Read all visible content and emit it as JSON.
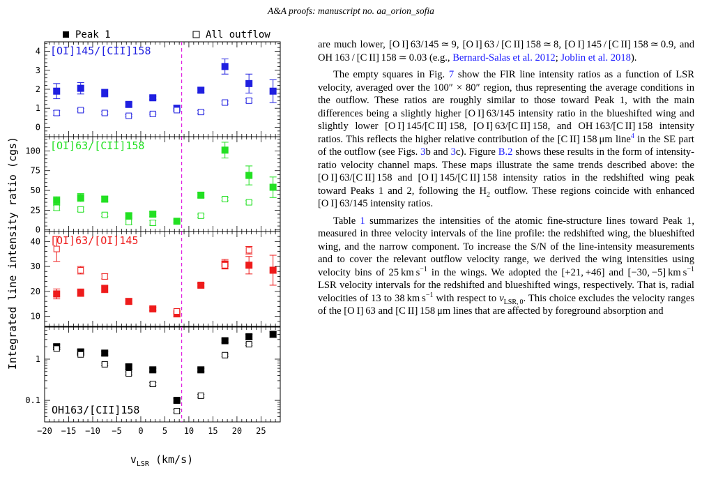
{
  "header": {
    "text": "A&A proofs: manuscript no. aa_orion_sofia"
  },
  "figure": {
    "legend": {
      "filled": "Peak 1",
      "open": "All outflow"
    },
    "ylabel": "Integrated line intensity ratio (cgs)",
    "xlabel": "v",
    "xlabel_sub": "LSR",
    "xlabel_unit": " (km/s)"
  },
  "chart_data": [
    {
      "type": "scatter",
      "title": "[OI]145/[CII]158",
      "color": "#1f1fe0",
      "scale": "linear",
      "ylim": [
        -0.5,
        4.5
      ],
      "yticks": [
        0,
        1,
        2,
        3,
        4
      ],
      "ytick_labels": [
        "0",
        "1",
        "2",
        "3",
        "4"
      ],
      "xlim": [
        -20,
        29
      ],
      "vline": 8.5,
      "series": [
        {
          "name": "Peak 1",
          "x": [
            -17.5,
            -12.5,
            -7.5,
            -2.5,
            2.5,
            7.5,
            12.5,
            17.5,
            22.5,
            27.5
          ],
          "y": [
            1.9,
            2.05,
            1.8,
            1.2,
            1.55,
            1.0,
            1.95,
            3.2,
            2.3,
            1.9
          ],
          "err": [
            0.4,
            0.3,
            0.2,
            0.12,
            0.08,
            0.15,
            0.12,
            0.4,
            0.5,
            0.6
          ]
        },
        {
          "name": "All outflow",
          "x": [
            -17.5,
            -12.5,
            -7.5,
            -2.5,
            2.5,
            7.5,
            12.5,
            17.5,
            22.5
          ],
          "y": [
            0.75,
            0.9,
            0.75,
            0.6,
            0.7,
            0.9,
            0.8,
            1.3,
            1.4
          ],
          "err": [
            0.12,
            0.08,
            0.08,
            0.06,
            0.05,
            0.08,
            0.08,
            0.08,
            0.1
          ]
        }
      ]
    },
    {
      "type": "scatter",
      "title": "[OI]63/[CII]158",
      "color": "#22e022",
      "scale": "linear",
      "ylim": [
        -2,
        118
      ],
      "yticks": [
        0,
        25,
        50,
        75,
        100
      ],
      "ytick_labels": [
        "0",
        "25",
        "50",
        "75",
        "100"
      ],
      "xlim": [
        -20,
        29
      ],
      "vline": 8.5,
      "series": [
        {
          "name": "Peak 1",
          "x": [
            -17.5,
            -12.5,
            -7.5,
            -2.5,
            2.5,
            7.5,
            12.5,
            17.5,
            22.5,
            27.5
          ],
          "y": [
            37,
            41,
            39,
            18,
            20,
            11,
            44,
            101,
            69,
            54
          ],
          "err": [
            5,
            5,
            3,
            3,
            3,
            2,
            3,
            10,
            12,
            13
          ]
        },
        {
          "name": "All outflow",
          "x": [
            -17.5,
            -12.5,
            -7.5,
            -2.5,
            2.5,
            12.5,
            17.5,
            22.5
          ],
          "y": [
            28,
            26,
            19,
            10,
            9,
            18,
            39,
            35
          ],
          "err": [
            3,
            3,
            2,
            3,
            3,
            2,
            2,
            2
          ]
        }
      ]
    },
    {
      "type": "scatter",
      "title": "[OI]63/[OI]145",
      "color": "#ee1b1b",
      "scale": "linear",
      "ylim": [
        6,
        44
      ],
      "yticks": [
        10,
        20,
        30,
        40
      ],
      "ytick_labels": [
        "10",
        "20",
        "30",
        "40"
      ],
      "xlim": [
        -20,
        29
      ],
      "vline": 8.5,
      "series": [
        {
          "name": "Peak 1",
          "x": [
            -17.5,
            -12.5,
            -7.5,
            -2.5,
            2.5,
            7.5,
            12.5,
            17.5,
            22.5,
            27.5
          ],
          "y": [
            19,
            19.5,
            21,
            16,
            13,
            11,
            22.5,
            31,
            30.5,
            28.5
          ],
          "err": [
            2,
            1.5,
            1.5,
            1,
            0.7,
            1.2,
            0.7,
            1.8,
            3.5,
            6
          ]
        },
        {
          "name": "All outflow",
          "x": [
            -17.5,
            -12.5,
            -7.5,
            7.5,
            17.5,
            22.5
          ],
          "y": [
            37,
            28.5,
            26,
            12,
            30.5,
            36.5
          ],
          "err": [
            5,
            1.5,
            1,
            1,
            1.5,
            1.5
          ]
        }
      ]
    },
    {
      "type": "scatter",
      "title": "OH163/[CII]158",
      "color": "#000000",
      "scale": "log",
      "ylim": [
        0.03,
        6
      ],
      "yticks": [
        0.1,
        1
      ],
      "ytick_labels": [
        "0.1",
        "1"
      ],
      "xlim": [
        -20,
        29
      ],
      "vline": 8.5,
      "series": [
        {
          "name": "Peak 1",
          "x": [
            -17.5,
            -12.5,
            -7.5,
            -2.5,
            2.5,
            7.5,
            12.5,
            17.5,
            22.5,
            27.5
          ],
          "y": [
            2.0,
            1.5,
            1.4,
            0.65,
            0.55,
            0.1,
            0.55,
            2.8,
            3.5,
            4.0
          ],
          "err": [
            0.3,
            0.2,
            0.15,
            0.08,
            0.05,
            0.01,
            0.05,
            0.3,
            0.5,
            0.6
          ]
        },
        {
          "name": "All outflow",
          "x": [
            -17.5,
            -12.5,
            -7.5,
            -2.5,
            2.5,
            7.5,
            12.5,
            17.5,
            22.5
          ],
          "y": [
            1.8,
            1.3,
            0.75,
            0.45,
            0.25,
            0.055,
            0.13,
            1.25,
            2.3
          ],
          "err": [
            0.1,
            0.08,
            0.05,
            0.04,
            0.02,
            0.005,
            0.01,
            0.08,
            0.15
          ]
        }
      ]
    }
  ],
  "xaxis": {
    "ticks": [
      -20,
      -15,
      -10,
      -5,
      0,
      5,
      10,
      15,
      20,
      25
    ],
    "tick_labels": [
      "−20",
      "−15",
      "−10",
      "−5",
      "0",
      "5",
      "10",
      "15",
      "20",
      "25"
    ]
  },
  "body": {
    "p1": [
      "are much lower, [O I] 63/145 ≃ 9, [O I] 63 / [C II] 158 ≃ 8, [O I] 145 / [C II] 158 ≃ 0.9, and OH 163 / [C II] 158 ≃ 0.03 (e.g., ",
      "Bernard-Salas et al. 2012",
      "; ",
      "Joblin et al. 2018",
      ")."
    ],
    "p2": [
      "The empty squares in Fig. ",
      "7",
      " show the FIR line intensity ratios as a function of LSR velocity, averaged over the 100″ × 80″ region, thus representing the average conditions in the outflow. These ratios are roughly similar to those toward Peak 1, with the main differences being a slightly higher [O I] 63/145 intensity ratio in the blueshifted wing and slightly lower [O I] 145/[C II] 158, [O I] 63/[C II] 158, and OH 163/[C II] 158 intensity ratios. This reflects the higher relative contribution of the [C II] 158 μm line",
      "4",
      " in the SE part of the outflow (see Figs. ",
      "3",
      "b and ",
      "3",
      "c). Figure ",
      "B.2",
      " shows these results in the form of intensity-ratio velocity channel maps. These maps illustrate the same trends described above: the [O I] 63/[C II] 158 and [O I] 145/[C II] 158 intensity ratios in the redshifted wing peak toward Peaks 1 and 2, following the H",
      "2",
      " outflow. These regions coincide with enhanced [O I] 63/145 intensity ratios."
    ],
    "p3": [
      "Table ",
      "1",
      " summarizes the intensities of the atomic fine-structure lines toward Peak 1, measured in three velocity intervals of the line profile: the redshifted wing, the blueshifted wing, and the narrow component. To increase the S/N of the line-intensity measurements and to cover the relevant outflow velocity range, we derived the wing intensities using velocity bins of 25 km s",
      "−1",
      " in the wings. We adopted the [+21, +46] and [−30, −5] km s",
      "−1",
      " LSR velocity intervals for the redshifted and blueshifted wings, respectively. That is, radial velocities of 13 to 38 km s",
      "−1",
      " with respect to ",
      "v",
      "LSR, 0",
      ". This choice excludes the velocity ranges of the [O I] 63 and [C II] 158 μm lines that are affected by foreground absorption and"
    ]
  }
}
